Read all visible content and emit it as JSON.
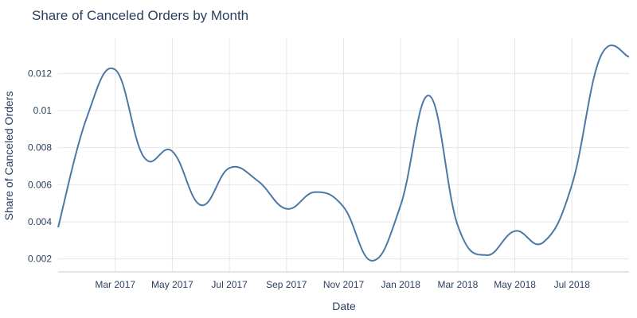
{
  "chart_data": {
    "type": "line",
    "title": "Share of Canceled Orders by Month",
    "xlabel": "Date",
    "ylabel": "Share of Canceled Orders",
    "x": [
      "2017-01",
      "2017-02",
      "2017-03",
      "2017-04",
      "2017-05",
      "2017-06",
      "2017-07",
      "2017-08",
      "2017-09",
      "2017-10",
      "2017-11",
      "2017-12",
      "2018-01",
      "2018-02",
      "2018-03",
      "2018-04",
      "2018-05",
      "2018-06",
      "2018-07",
      "2018-08",
      "2018-09"
    ],
    "series": [
      {
        "values": [
          0.0037,
          0.0096,
          0.0122,
          0.0075,
          0.0078,
          0.0049,
          0.0069,
          0.0062,
          0.0047,
          0.0056,
          0.0048,
          0.0019,
          0.0049,
          0.0108,
          0.0038,
          0.0022,
          0.0035,
          0.0029,
          0.006,
          0.0129,
          0.0129
        ],
        "color": "#4c78a8"
      }
    ],
    "x_ticks": [
      "Mar 2017",
      "May 2017",
      "Jul 2017",
      "Sep 2017",
      "Nov 2017",
      "Jan 2018",
      "Mar 2018",
      "May 2018",
      "Jul 2018"
    ],
    "y_ticks": [
      "0.002",
      "0.004",
      "0.006",
      "0.008",
      "0.01",
      "0.012"
    ],
    "ylim": [
      0.0013,
      0.0139
    ],
    "grid": true
  }
}
